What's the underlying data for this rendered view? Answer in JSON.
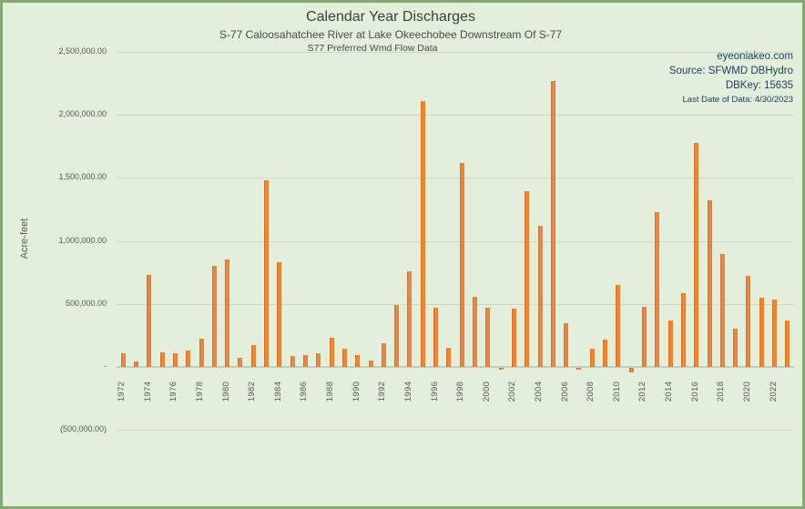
{
  "window": {
    "background_color": "#e2efda",
    "border_color": "#84a871"
  },
  "header": {
    "title": "Calendar Year Discharges",
    "subtitle1": "S-77 Caloosahatchee River at Lake Okeechobee Downstream Of S-77",
    "subtitle2": "S77 Preferred Wmd Flow Data"
  },
  "info_box": {
    "website": "eyeonlakeo.com",
    "source": "Source: SFWMD DBHydro",
    "dbkey": "DBKey: 15635",
    "last_date": "Last Date of Data: 4/30/2023",
    "text_color": "#1f4060"
  },
  "chart_data": {
    "type": "bar",
    "title": "Calendar Year Discharges",
    "xlabel": "",
    "ylabel": "Acre-feet",
    "bar_color": "#ed7d31",
    "grid": true,
    "legend": false,
    "ylim": [
      -500000,
      2500000
    ],
    "yticks": [
      {
        "value": 2500000,
        "label": "2,500,000.00"
      },
      {
        "value": 2000000,
        "label": "2,000,000.00"
      },
      {
        "value": 1500000,
        "label": "1,500,000.00"
      },
      {
        "value": 1000000,
        "label": "1,000,000.00"
      },
      {
        "value": 500000,
        "label": "500,000.00"
      },
      {
        "value": 0,
        "label": "-"
      },
      {
        "value": -500000,
        "label": "(500,000.00)"
      }
    ],
    "xtick_label_interval": 2,
    "categories": [
      1972,
      1973,
      1974,
      1975,
      1976,
      1977,
      1978,
      1979,
      1980,
      1981,
      1982,
      1983,
      1984,
      1985,
      1986,
      1987,
      1988,
      1989,
      1990,
      1991,
      1992,
      1993,
      1994,
      1995,
      1996,
      1997,
      1998,
      1999,
      2000,
      2001,
      2002,
      2003,
      2004,
      2005,
      2006,
      2007,
      2008,
      2009,
      2010,
      2011,
      2012,
      2013,
      2014,
      2015,
      2016,
      2017,
      2018,
      2019,
      2020,
      2021,
      2022,
      2023
    ],
    "values": [
      110000,
      48000,
      731000,
      115000,
      110000,
      135000,
      230000,
      808000,
      856000,
      74000,
      175000,
      1487000,
      832000,
      90000,
      100000,
      110000,
      235000,
      145000,
      100000,
      55000,
      190000,
      495000,
      765000,
      2115000,
      471000,
      152000,
      1620000,
      560000,
      471000,
      -15000,
      464000,
      1398000,
      1121000,
      2270000,
      350000,
      -12000,
      150000,
      222000,
      656000,
      -35000,
      483000,
      1230000,
      370000,
      587000,
      1783000,
      1326000,
      897000,
      309000,
      724000,
      551000,
      538000,
      370000
    ]
  }
}
